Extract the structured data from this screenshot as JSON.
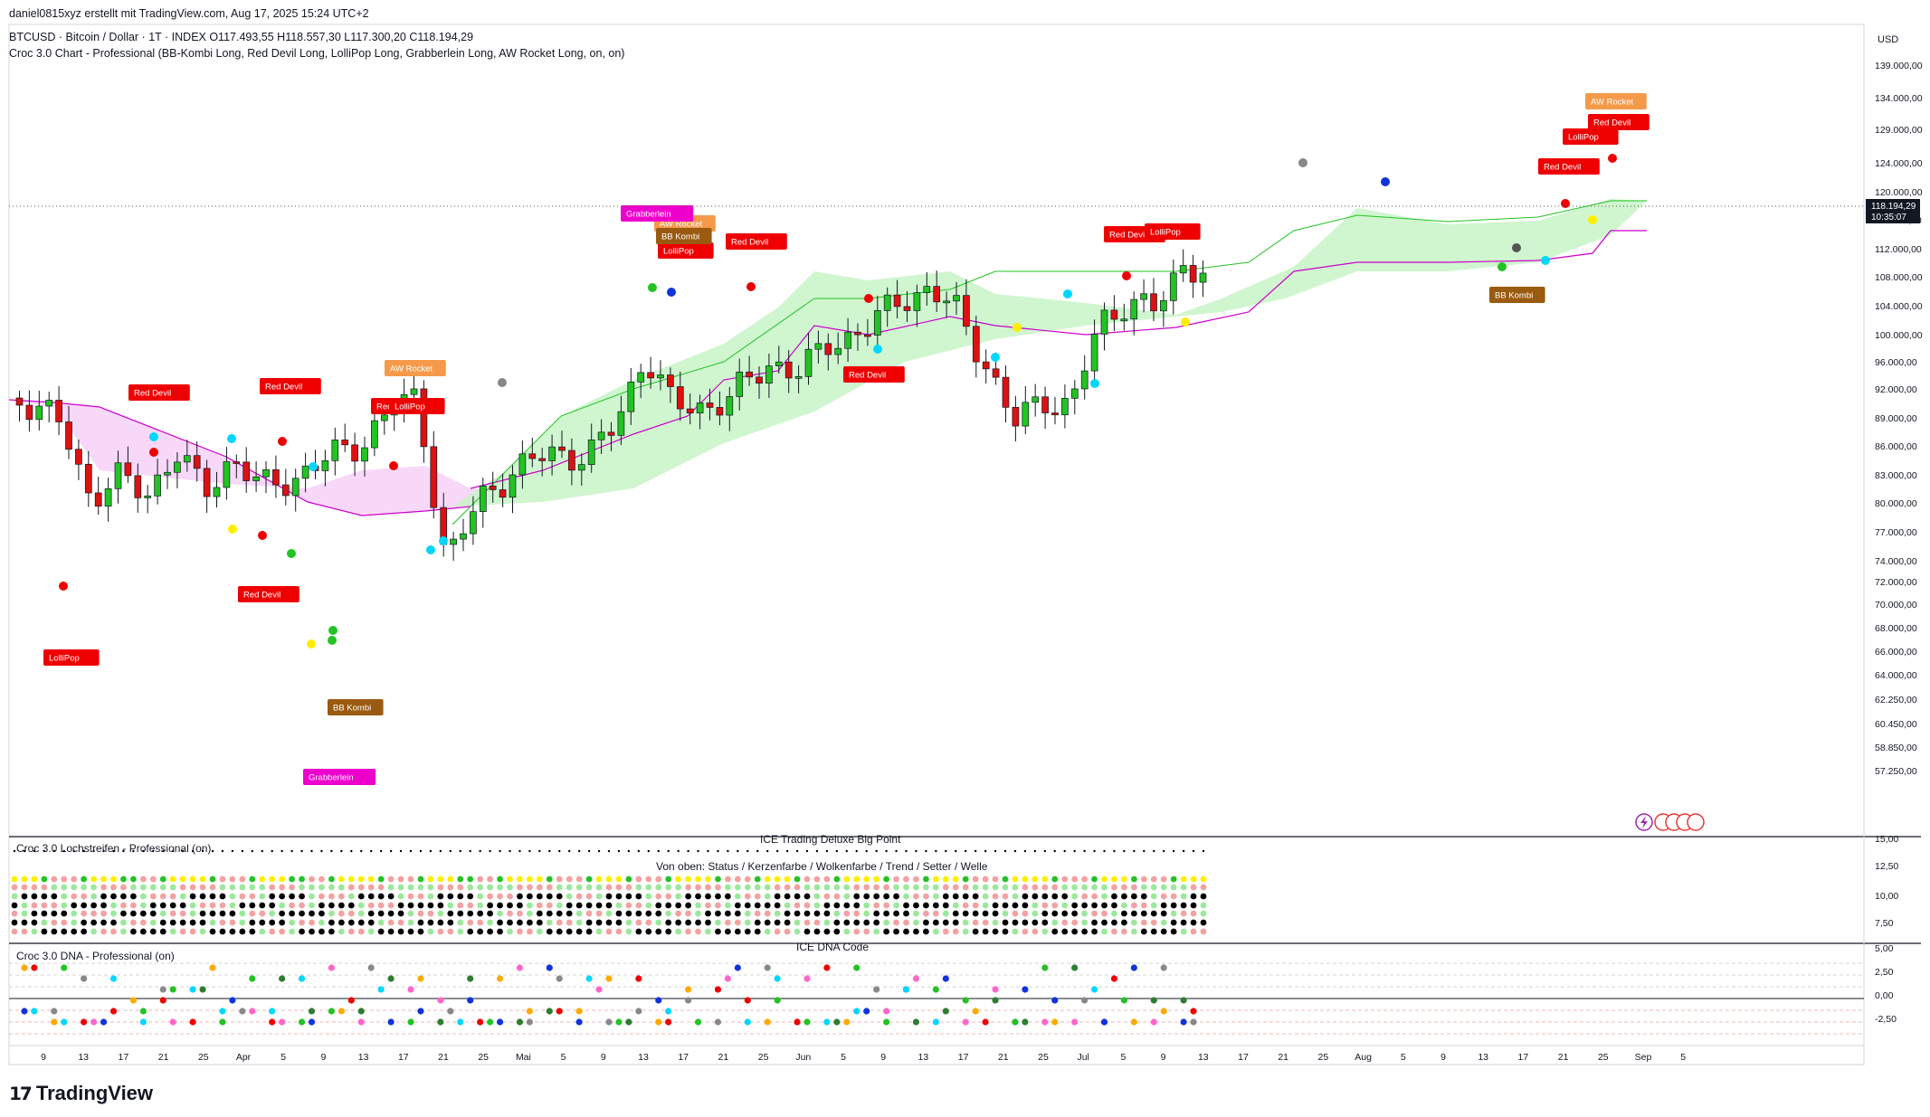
{
  "header": {
    "credit": "daniel0815xyz erstellt mit TradingView.com, Aug 17, 2025 15:24 UTC+2",
    "symbol_line": "BTCUSD · Bitcoin / Dollar · 1T · INDEX  O117.493,55  H118.557,30  L117.300,20  C118.194,29",
    "indicator_line": "Croc 3.0 Chart - Professional (BB-Kombi Long, Red Devil Long, LolliPop Long, Grabberlein Long, AW Rocket Long, on, on)"
  },
  "price_axis": {
    "currency": "USD",
    "ticks": [
      "139.000,00",
      "134.000,00",
      "129.000,00",
      "124.000,00",
      "120.000,00",
      "116.000,00",
      "112.000,00",
      "108.000,00",
      "104.000,00",
      "100.000,00",
      "96.000,00",
      "92.000,00",
      "89.000,00",
      "86.000,00",
      "83.000,00",
      "80.000,00",
      "77.000,00",
      "74.000,00",
      "72.000,00",
      "70.000,00",
      "68.000,00",
      "66.000,00",
      "64.000,00",
      "62.250,00",
      "60.450,00",
      "58.850,00",
      "57.250,00"
    ],
    "current_price": "118.194,29",
    "countdown": "10:35:07"
  },
  "panes": {
    "lochstreifen": {
      "title": "Croc 3.0 Lochstreifen - Professional (on)",
      "center_label": "ICE Trading Deluxe Big Point",
      "sub_label": "Von oben: Status / Kerzenfarbe / Wolkenfarbe / Trend / Setter / Welle",
      "ticks": [
        "15,00",
        "12,50",
        "10,00",
        "7,50"
      ]
    },
    "dna": {
      "title": "Croc 3.0 DNA - Professional (on)",
      "center_label": "ICE DNA Code",
      "ticks": [
        "5,00",
        "2,50",
        "0,00",
        "-2,50"
      ]
    }
  },
  "time_axis": {
    "labels": [
      "9",
      "13",
      "17",
      "21",
      "25",
      "Apr",
      "5",
      "9",
      "13",
      "17",
      "21",
      "25",
      "Mai",
      "5",
      "9",
      "13",
      "17",
      "21",
      "25",
      "Jun",
      "5",
      "9",
      "13",
      "17",
      "21",
      "25",
      "Jul",
      "5",
      "9",
      "13",
      "17",
      "21",
      "25",
      "Aug",
      "5",
      "9",
      "13",
      "17",
      "21",
      "25",
      "Sep",
      "5"
    ]
  },
  "signals": {
    "red_devil": "Red Devil",
    "lollipop": "LolliPop",
    "aw_rocket": "AW Rocket",
    "bb_kombi": "BB Kombi",
    "grabberlein": "Grabberlein"
  },
  "colors": {
    "bull": "#22c322",
    "bear": "#dd1111",
    "cloud_green": "#c8f5c8",
    "cloud_pink": "#f7d4f7",
    "band_magenta": "#cc00cc",
    "red_devil_bg": "#ee0000",
    "aw_rocket_bg": "#f59a4a",
    "bb_kombi_bg": "#9a5a10",
    "grabberlein_bg": "#ee00cc"
  },
  "footer": {
    "brand": "TradingView"
  }
}
